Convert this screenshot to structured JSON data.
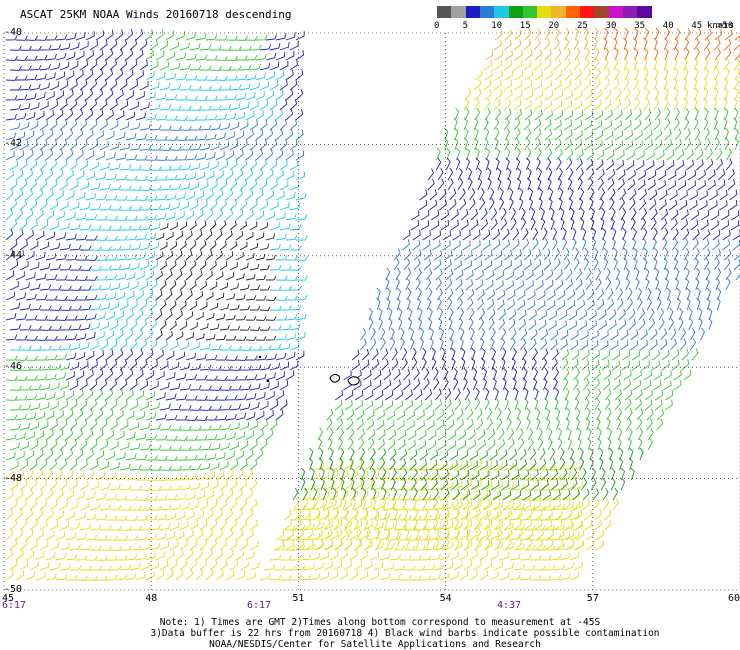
{
  "title": "ASCAT 25KM NOAA Winds 20160718 descending",
  "colorbar": {
    "unit_label": "knots",
    "colors": [
      "#555555",
      "#a0a0a0",
      "#1e1ebe",
      "#2f7ad8",
      "#1ec8e6",
      "#14a014",
      "#32c832",
      "#e6dc14",
      "#f0b428",
      "#ff6400",
      "#ff1414",
      "#a0462d",
      "#c814c8",
      "#8c1eb4",
      "#5a0aa0"
    ],
    "labels": [
      "0",
      "5",
      "10",
      "15",
      "20",
      "25",
      "30",
      "35",
      "40",
      "45",
      ">50"
    ]
  },
  "map": {
    "lat_labels": [
      "-40",
      "-42",
      "-44",
      "-46",
      "-48",
      "-50"
    ],
    "lon_labels": [
      "45",
      "48",
      "51",
      "54",
      "57",
      "60"
    ],
    "lat_values": [
      -40,
      -42,
      -44,
      -46,
      -48,
      -50
    ],
    "lon_values": [
      45,
      48,
      51,
      54,
      57,
      60
    ],
    "times": [
      "6:17",
      "6:17",
      "4:37"
    ]
  },
  "notes": {
    "line1": "Note: 1) Times are GMT 2)Times along bottom correspond to measurement at -45S",
    "line2": "3)Data buffer is 22 hrs from 20160718 4) Black wind barbs indicate possible contamination",
    "line3": "NOAA/NESDIS/Center for Satellite Applications and Research"
  }
}
